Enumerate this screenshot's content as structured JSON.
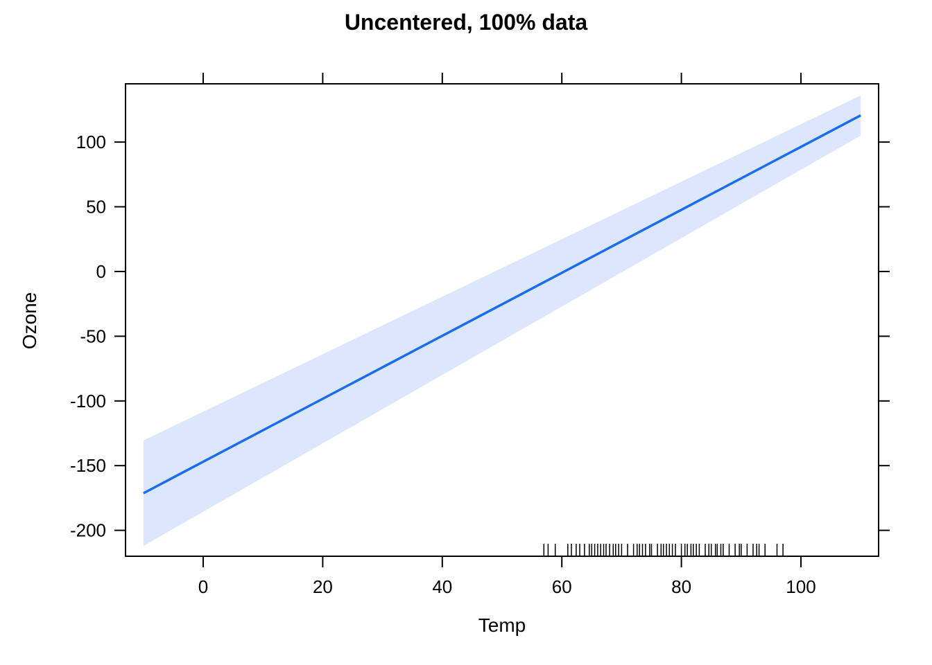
{
  "chart_data": {
    "type": "line",
    "title": "Uncentered, 100% data",
    "xlabel": "Temp",
    "ylabel": "Ozone",
    "xlim": [
      -13,
      113
    ],
    "ylim": [
      -220,
      145
    ],
    "x_ticks": [
      0,
      20,
      40,
      60,
      80,
      100
    ],
    "y_ticks": [
      -200,
      -150,
      -100,
      -50,
      0,
      50,
      100
    ],
    "x_tick_labels": [
      "0",
      "20",
      "40",
      "60",
      "80",
      "100"
    ],
    "y_tick_labels": [
      "-200",
      "-150",
      "-100",
      "-50",
      "0",
      "50",
      "100"
    ],
    "grid": false,
    "colors": {
      "line": "#1a6cf0",
      "band": "#dce6fd",
      "axis": "#000000"
    },
    "series": [
      {
        "x": [
          -10,
          110
        ],
        "y": [
          -171.3,
          120.6
        ],
        "lower": [
          -212,
          105
        ],
        "upper": [
          -130.5,
          136
        ]
      }
    ],
    "rug": [
      57,
      57.7,
      58.9,
      61,
      61.6,
      62.4,
      63,
      63.8,
      64.6,
      65,
      65.5,
      66,
      66.5,
      67,
      67.4,
      68,
      68.6,
      69,
      69.5,
      70,
      71,
      72,
      72.6,
      73,
      73.5,
      74,
      74.7,
      75,
      76,
      76.6,
      77,
      77.5,
      78,
      78.5,
      79,
      80,
      80.6,
      81,
      81.6,
      82,
      82.5,
      83,
      84,
      84.6,
      85,
      85.7,
      86,
      86.6,
      87,
      88,
      89,
      89.7,
      90,
      91,
      92,
      92.6,
      93,
      94,
      96,
      97
    ]
  }
}
